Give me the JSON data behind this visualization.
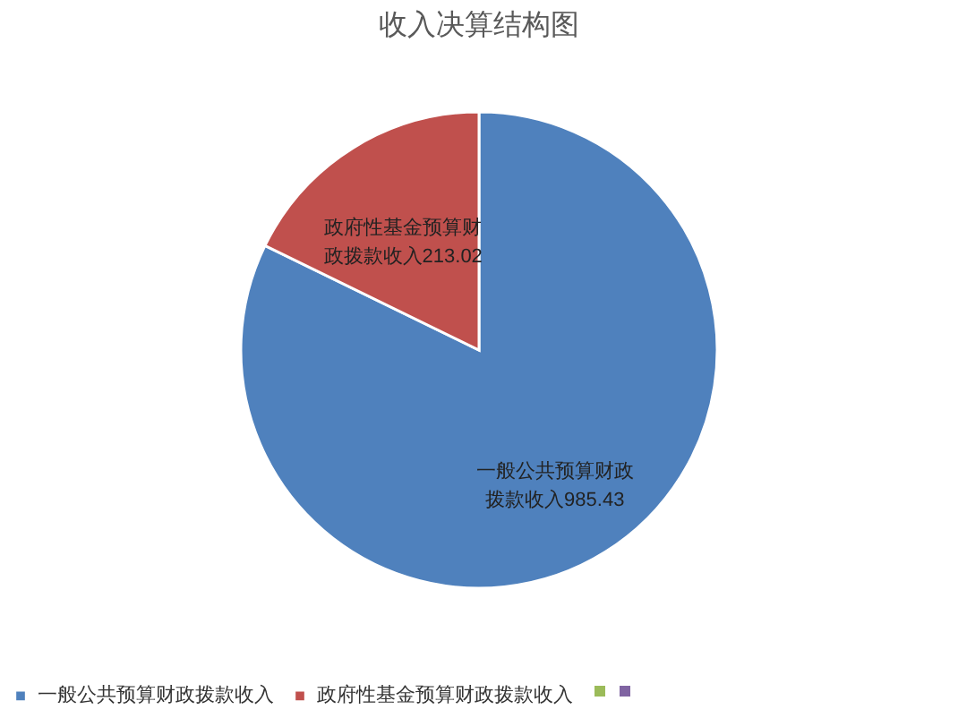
{
  "chart_data": {
    "type": "pie",
    "title": "收入决算结构图",
    "categories": [
      "一般公共预算财政拨款收入",
      "政府性基金预算财政拨款收入"
    ],
    "values": [
      985.43,
      213.02
    ],
    "colors": [
      "#4f81bd",
      "#c0504d"
    ],
    "value_labels": [
      "一般公共预算财政拨款收入985.43",
      "政府性基金预算财政拨款收入213.02"
    ],
    "legend": "bottom"
  }
}
